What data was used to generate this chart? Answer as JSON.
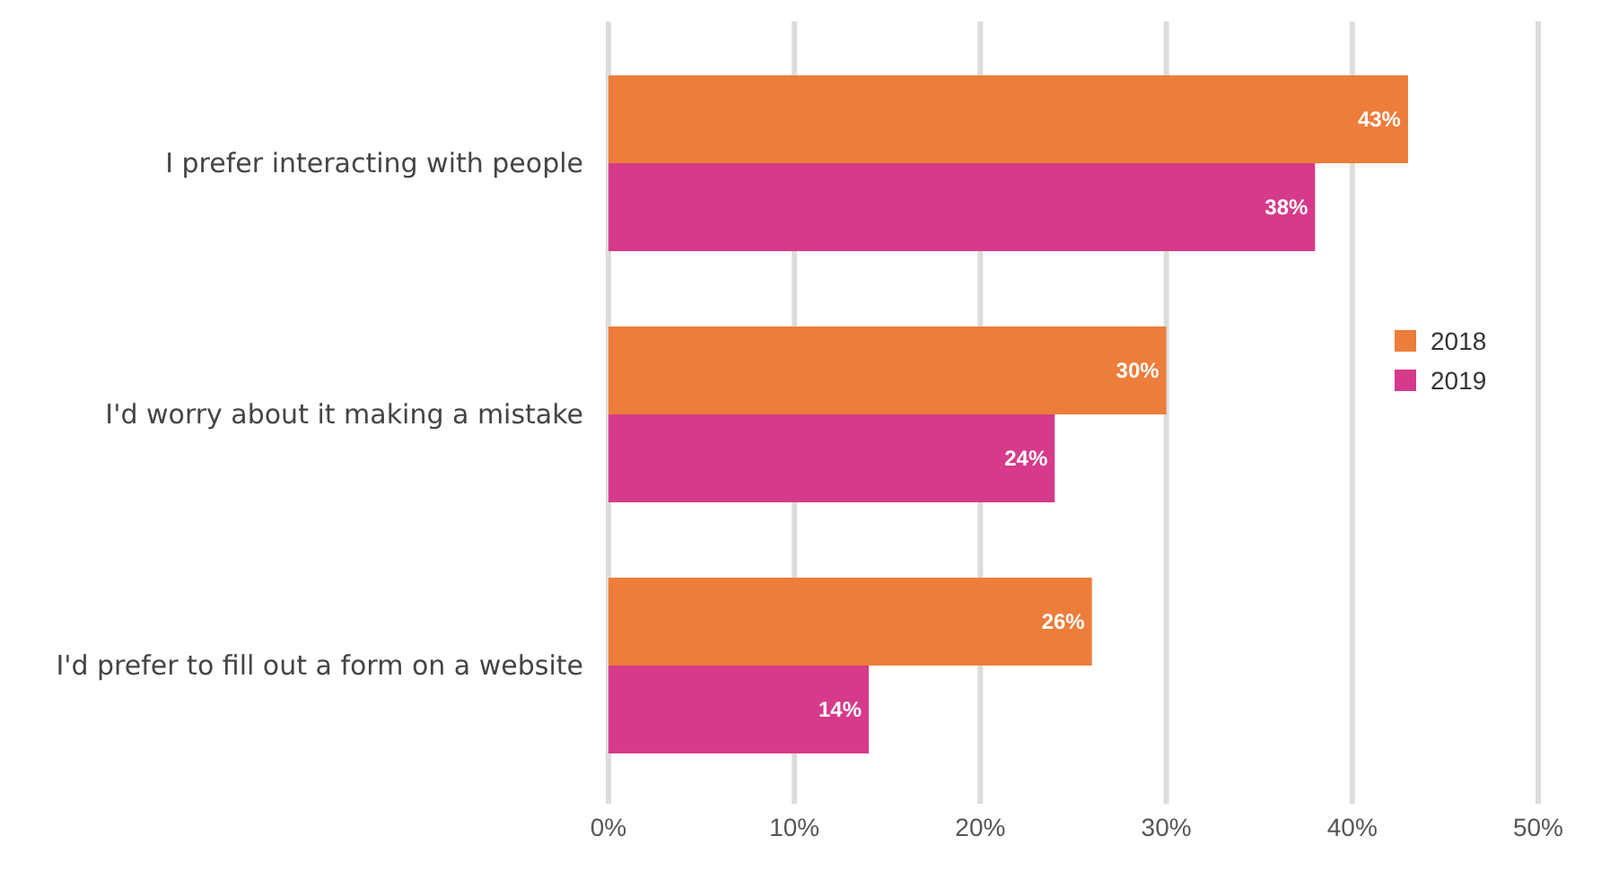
{
  "chart_data": {
    "type": "bar",
    "orientation": "horizontal",
    "categories": [
      "I prefer interacting with people",
      "I'd worry about it making a mistake",
      "I'd prefer to fill out a form on a website"
    ],
    "series": [
      {
        "name": "2018",
        "color": "#ed7d3a",
        "values": [
          43,
          30,
          26
        ],
        "value_labels": [
          "43%",
          "30%",
          "26%"
        ]
      },
      {
        "name": "2019",
        "color": "#d63a8a",
        "values": [
          38,
          24,
          14
        ],
        "value_labels": [
          "38%",
          "24%",
          "14%"
        ]
      }
    ],
    "xlim": [
      0,
      50
    ],
    "xticks": [
      {
        "value": 0,
        "label": "0%"
      },
      {
        "value": 10,
        "label": "10%"
      },
      {
        "value": 20,
        "label": "20%"
      },
      {
        "value": 30,
        "label": "30%"
      },
      {
        "value": 40,
        "label": "40%"
      },
      {
        "value": 50,
        "label": "50%"
      }
    ],
    "grid": "x",
    "legend": "right"
  }
}
